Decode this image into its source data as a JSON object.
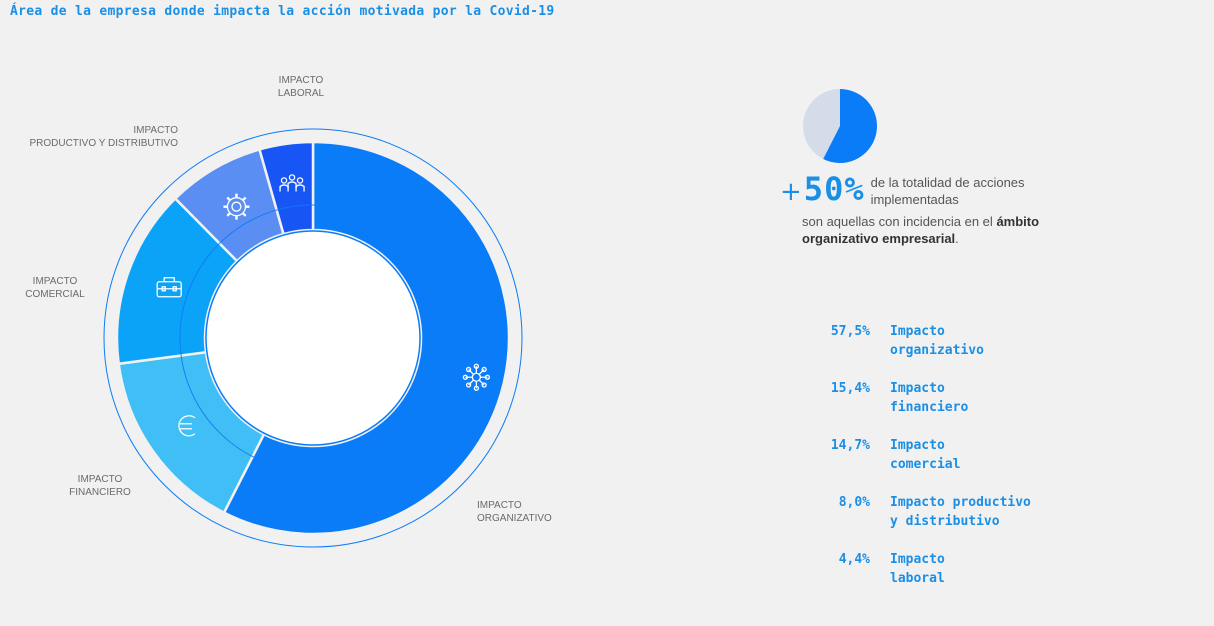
{
  "title": "Área de la empresa donde impacta la acción motivada por la Covid-19",
  "chart_data": {
    "type": "pie",
    "title": "Área de la empresa donde impacta la acción motivada por la Covid-19",
    "slices": [
      {
        "name": "Impacto organizativo",
        "value": 57.5,
        "label_line1": "IMPACTO",
        "label_line2": "ORGANIZATIVO",
        "legend_value": "57,5%",
        "legend_label": "Impacto\norganizativo",
        "color": "#0a7cf7",
        "icon": "network-icon"
      },
      {
        "name": "Impacto financiero",
        "value": 15.4,
        "label_line1": "IMPACTO",
        "label_line2": "FINANCIERO",
        "legend_value": "15,4%",
        "legend_label": "Impacto\nfinanciero",
        "color": "#3fbff5",
        "icon": "euro-icon"
      },
      {
        "name": "Impacto comercial",
        "value": 14.7,
        "label_line1": "IMPACTO",
        "label_line2": "COMERCIAL",
        "legend_value": "14,7%",
        "legend_label": "Impacto\ncomercial",
        "color": "#0aa3f7",
        "icon": "briefcase-icon"
      },
      {
        "name": "Impacto productivo y distributivo",
        "value": 8.0,
        "label_line1": "IMPACTO",
        "label_line2": "PRODUCTIVO Y DISTRIBUTIVO",
        "legend_value": "8,0%",
        "legend_label": "Impacto productivo\ny distributivo",
        "color": "#5a8ef2",
        "icon": "gear-icon"
      },
      {
        "name": "Impacto laboral",
        "value": 4.4,
        "label_line1": "IMPACTO",
        "label_line2": "LABORAL",
        "legend_value": "4,4%",
        "legend_label": "Impacto\nlaboral",
        "color": "#1755f5",
        "icon": "people-icon"
      }
    ]
  },
  "highlight": {
    "plus": "+",
    "value": "50%",
    "text_a": "de la totalidad de acciones implementadas",
    "text_b": "son aquellas con incidencia en el",
    "text_bold": "ámbito organizativo empresarial",
    "text_end": ".",
    "pie_fraction": 0.575,
    "pie_color": "#0a7cf7",
    "pie_rest_color": "#d3dce8"
  }
}
